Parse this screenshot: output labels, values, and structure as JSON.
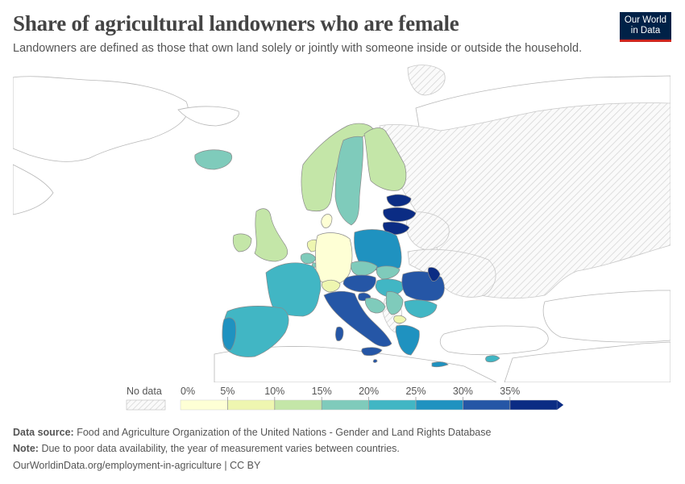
{
  "header": {
    "title": "Share of agricultural landowners who are female",
    "subtitle": "Landowners are defined as those that own land solely or jointly with someone inside or outside the household.",
    "logo_line1": "Our World",
    "logo_line2": "in Data"
  },
  "legend": {
    "no_data_label": "No data",
    "ticks": [
      "0%",
      "5%",
      "10%",
      "15%",
      "20%",
      "25%",
      "30%",
      "35%"
    ],
    "colors": [
      "#feffd5",
      "#eef6b0",
      "#c4e6a8",
      "#7fcbbb",
      "#41b6c4",
      "#1f92c0",
      "#2556a6",
      "#0b2c84"
    ],
    "no_data_color": "#f2f2f2"
  },
  "map_data": {
    "metric": "Share of agricultural landowners who are female (%)",
    "countries": [
      {
        "name": "Iceland",
        "value": 17
      },
      {
        "name": "Norway",
        "value": 12
      },
      {
        "name": "Sweden",
        "value": 17
      },
      {
        "name": "Finland",
        "value": 13
      },
      {
        "name": "Estonia",
        "value": 37
      },
      {
        "name": "Latvia",
        "value": 37
      },
      {
        "name": "Lithuania",
        "value": 37
      },
      {
        "name": "Denmark",
        "value": 3
      },
      {
        "name": "United Kingdom",
        "value": 12
      },
      {
        "name": "Ireland",
        "value": 13
      },
      {
        "name": "Netherlands",
        "value": 5
      },
      {
        "name": "Belgium",
        "value": 17
      },
      {
        "name": "Luxembourg",
        "value": 17
      },
      {
        "name": "Germany",
        "value": 4
      },
      {
        "name": "Poland",
        "value": 27
      },
      {
        "name": "Czechia",
        "value": 18
      },
      {
        "name": "Slovakia",
        "value": 18
      },
      {
        "name": "Austria",
        "value": 32
      },
      {
        "name": "Switzerland",
        "value": 5
      },
      {
        "name": "France",
        "value": 22
      },
      {
        "name": "Hungary",
        "value": 24
      },
      {
        "name": "Slovenia",
        "value": 30
      },
      {
        "name": "Croatia",
        "value": 17
      },
      {
        "name": "Romania",
        "value": 32
      },
      {
        "name": "Moldova",
        "value": 37
      },
      {
        "name": "Bulgaria",
        "value": 22
      },
      {
        "name": "Italy",
        "value": 32
      },
      {
        "name": "Spain",
        "value": 22
      },
      {
        "name": "Portugal",
        "value": 27
      },
      {
        "name": "Greece",
        "value": 27
      },
      {
        "name": "Cyprus",
        "value": 22
      },
      {
        "name": "Malta",
        "value": 32
      },
      {
        "name": "Serbia",
        "value": 17
      },
      {
        "name": "North Macedonia",
        "value": 5
      }
    ],
    "no_data": [
      "Russia",
      "Belarus",
      "Ukraine",
      "Bosnia and Herzegovina",
      "Montenegro",
      "Albania",
      "Svalbard"
    ]
  },
  "footer": {
    "source_label": "Data source:",
    "source_text": "Food and Agriculture Organization of the United Nations - Gender and Land Rights Database",
    "note_label": "Note:",
    "note_text": "Due to poor data availability, the year of measurement varies between countries.",
    "url_text": "OurWorldinData.org/employment-in-agriculture | CC BY"
  }
}
